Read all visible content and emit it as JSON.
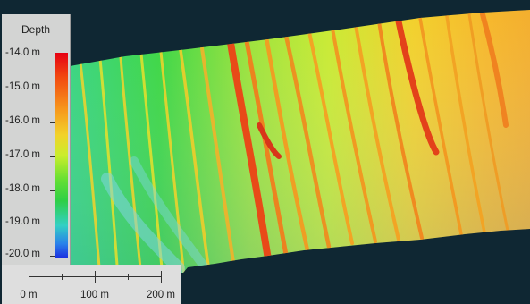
{
  "legend": {
    "title": "Depth",
    "ticks": [
      "-14.0 m",
      "-15.0 m",
      "-16.0 m",
      "-17.0 m",
      "-18.0 m",
      "-19.0 m",
      "-20.0 m"
    ],
    "colors": {
      "shallow": "#e60012",
      "mid": "#c9ee2c",
      "deep": "#1b2ce0"
    }
  },
  "scale_bar": {
    "labels": [
      "0 m",
      "100 m",
      "200 m"
    ]
  },
  "map": {
    "background_color": "#0f2733"
  }
}
